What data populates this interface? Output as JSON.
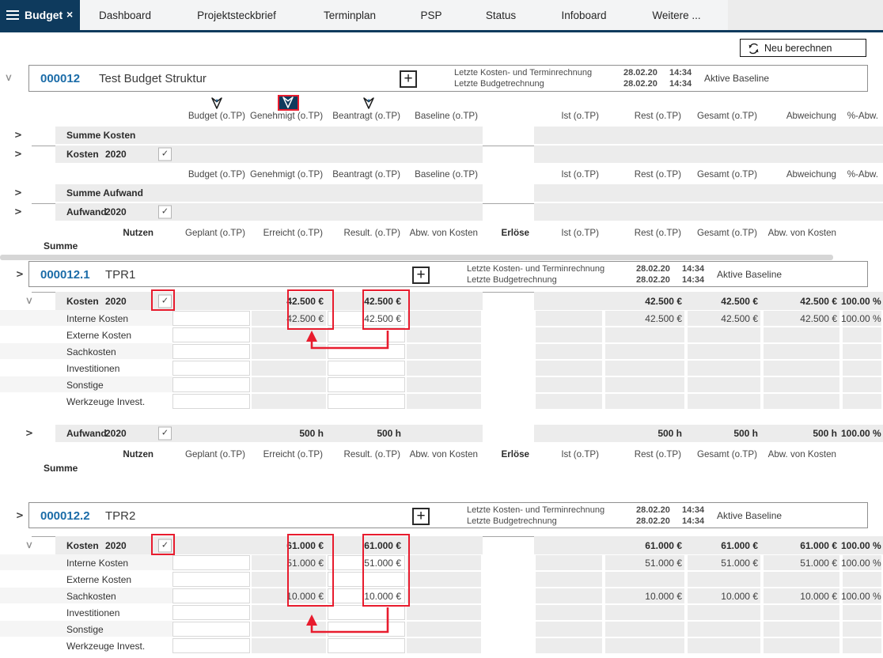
{
  "nav": {
    "active_tab": "Budget",
    "close_glyph": "×",
    "tabs": [
      "Dashboard",
      "Projektsteckbrief",
      "Terminplan",
      "PSP",
      "Status",
      "Infoboard",
      "Weitere ..."
    ]
  },
  "toolbar": {
    "recalculate": "Neu berechnen"
  },
  "meta": {
    "line1_label": "Letzte Kosten- und Terminrechnung",
    "line2_label": "Letzte Budgetrechnung",
    "date": "28.02.20",
    "time": "14:34",
    "baseline": "Aktive Baseline"
  },
  "table": {
    "left_columns": [
      "Budget (o.TP)",
      "Genehmigt (o.TP)",
      "Beantragt (o.TP)",
      "Baseline (o.TP)"
    ],
    "right_columns": [
      "Ist (o.TP)",
      "Rest (o.TP)",
      "Gesamt (o.TP)",
      "Abweichung",
      "%-Abw."
    ],
    "nutzen": {
      "label": "Nutzen",
      "cols": [
        "Geplant (o.TP)",
        "Erreicht (o.TP)",
        "Result. (o.TP)",
        "Abw. von Kosten"
      ],
      "erloese": "Erlöse",
      "right_cols": [
        "Ist (o.TP)",
        "Rest (o.TP)",
        "Gesamt (o.TP)",
        "Abw. von Kosten"
      ]
    },
    "summe_label": "Summe",
    "summe_kosten": "Summe Kosten",
    "summe_aufwand": "Summe Aufwand",
    "kosten_label": "Kosten",
    "aufwand_label": "Aufwand",
    "year": "2020",
    "check_glyph": "✓"
  },
  "sections": [
    {
      "id": "000012",
      "name": "Test Budget Struktur"
    },
    {
      "id": "000012.1",
      "name": "TPR1",
      "kosten": {
        "c": [
          "",
          "42.500 €",
          "42.500 €",
          ""
        ],
        "r": [
          "",
          "42.500 €",
          "42.500 €",
          "42.500 €",
          "100.00 %"
        ]
      },
      "details": [
        {
          "label": "Interne Kosten",
          "c": [
            "",
            "42.500 €",
            "42.500 €",
            ""
          ],
          "r": [
            "",
            "42.500 €",
            "42.500 €",
            "42.500 €",
            "100.00 %"
          ]
        },
        {
          "label": "Externe Kosten",
          "c": [
            "",
            "",
            "",
            ""
          ],
          "r": [
            "",
            "",
            "",
            "",
            ""
          ]
        },
        {
          "label": "Sachkosten",
          "c": [
            "",
            "",
            "",
            ""
          ],
          "r": [
            "",
            "",
            "",
            "",
            ""
          ]
        },
        {
          "label": "Investitionen",
          "c": [
            "",
            "",
            "",
            ""
          ],
          "r": [
            "",
            "",
            "",
            "",
            ""
          ]
        },
        {
          "label": "Sonstige",
          "c": [
            "",
            "",
            "",
            ""
          ],
          "r": [
            "",
            "",
            "",
            "",
            ""
          ]
        },
        {
          "label": "Werkzeuge Invest.",
          "c": [
            "",
            "",
            "",
            ""
          ],
          "r": [
            "",
            "",
            "",
            "",
            ""
          ]
        }
      ],
      "aufwand": {
        "c": [
          "",
          "500 h",
          "500 h",
          ""
        ],
        "r": [
          "",
          "500 h",
          "500 h",
          "500 h",
          "100.00 %"
        ]
      }
    },
    {
      "id": "000012.2",
      "name": "TPR2",
      "kosten": {
        "c": [
          "",
          "61.000 €",
          "61.000 €",
          ""
        ],
        "r": [
          "",
          "61.000 €",
          "61.000 €",
          "61.000 €",
          "100.00 %"
        ]
      },
      "details": [
        {
          "label": "Interne Kosten",
          "c": [
            "",
            "51.000 €",
            "51.000 €",
            ""
          ],
          "r": [
            "",
            "51.000 €",
            "51.000 €",
            "51.000 €",
            "100.00 %"
          ]
        },
        {
          "label": "Externe Kosten",
          "c": [
            "",
            "",
            "",
            ""
          ],
          "r": [
            "",
            "",
            "",
            "",
            ""
          ]
        },
        {
          "label": "Sachkosten",
          "c": [
            "",
            "10.000 €",
            "10.000 €",
            ""
          ],
          "r": [
            "",
            "10.000 €",
            "10.000 €",
            "10.000 €",
            "100.00 %"
          ]
        },
        {
          "label": "Investitionen",
          "c": [
            "",
            "",
            "",
            ""
          ],
          "r": [
            "",
            "",
            "",
            "",
            ""
          ]
        },
        {
          "label": "Sonstige",
          "c": [
            "",
            "",
            "",
            ""
          ],
          "r": [
            "",
            "",
            "",
            "",
            ""
          ]
        },
        {
          "label": "Werkzeuge Invest.",
          "c": [
            "",
            "",
            "",
            ""
          ],
          "r": [
            "",
            "",
            "",
            "",
            ""
          ]
        }
      ]
    }
  ]
}
